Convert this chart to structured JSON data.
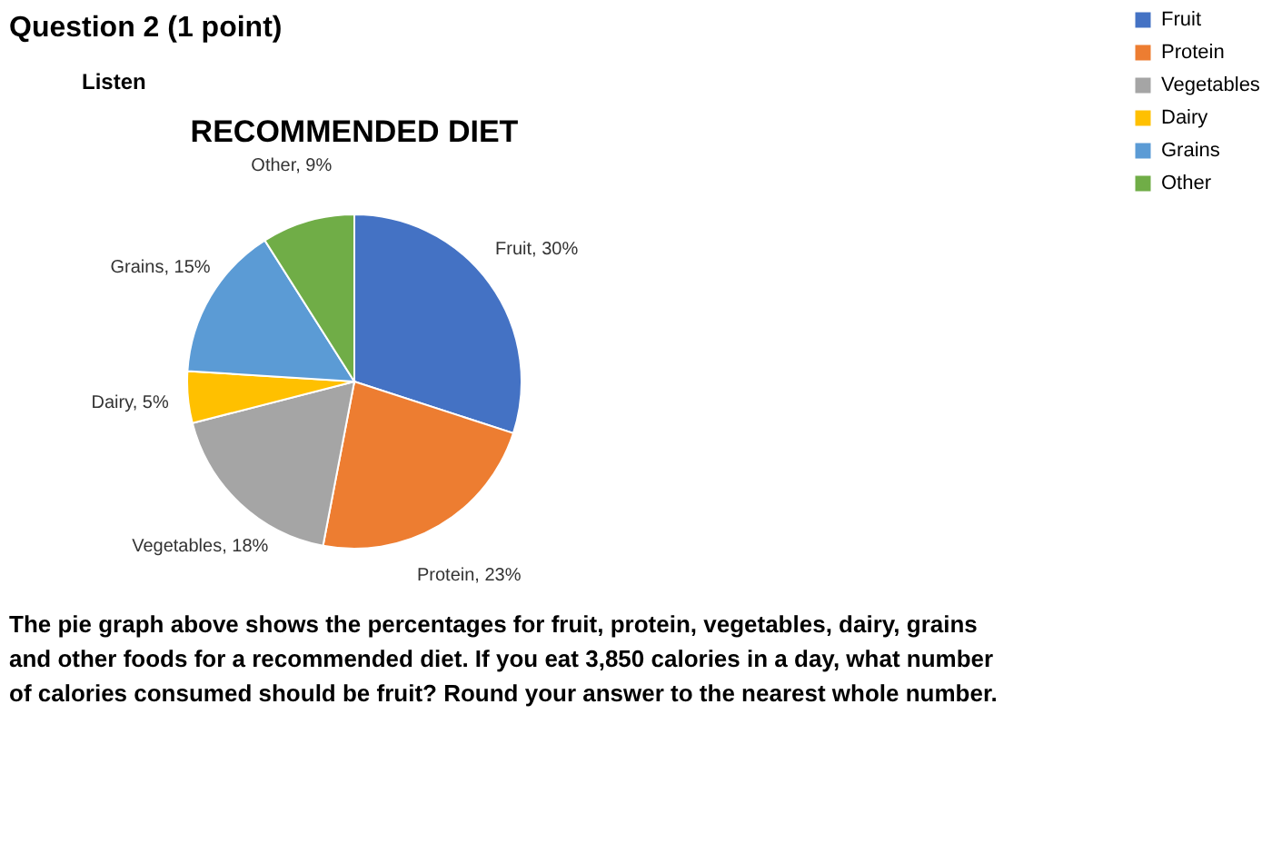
{
  "chart_data": {
    "type": "pie",
    "title": "RECOMMENDED DIET",
    "categories": [
      "Fruit",
      "Protein",
      "Vegetables",
      "Dairy",
      "Grains",
      "Other"
    ],
    "values": [
      30,
      23,
      18,
      5,
      15,
      9
    ],
    "colors": [
      "#4472c4",
      "#ed7d31",
      "#a5a5a5",
      "#ffc000",
      "#5b9bd5",
      "#70ad47"
    ],
    "value_labels": [
      "Fruit, 30%",
      "Protein, 23%",
      "Vegetables, 18%",
      "Dairy, 5%",
      "Grains, 15%",
      "Other, 9%"
    ],
    "legend": "right",
    "annotations": [
      "Question 2 (1 point)",
      "Listen",
      "The pie graph above shows the percentages for fruit, protein, vegetables, dairy, grains and other foods for a recommended diet. If you eat 3,850 calories in a day, what number of calories consumed should be fruit? Round your answer to the nearest whole number."
    ]
  }
}
